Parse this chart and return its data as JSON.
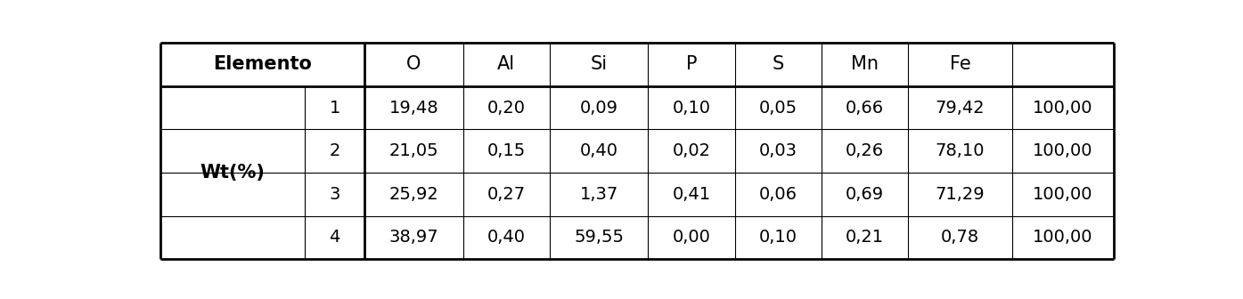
{
  "row_label": "Wt(%)",
  "header_elements": [
    "O",
    "Al",
    "Si",
    "P",
    "S",
    "Mn",
    "Fe",
    ""
  ],
  "sub_rows": [
    [
      "1",
      "19,48",
      "0,20",
      "0,09",
      "0,10",
      "0,05",
      "0,66",
      "79,42",
      "100,00"
    ],
    [
      "2",
      "21,05",
      "0,15",
      "0,40",
      "0,02",
      "0,03",
      "0,26",
      "78,10",
      "100,00"
    ],
    [
      "3",
      "25,92",
      "0,27",
      "1,37",
      "0,41",
      "0,06",
      "0,69",
      "71,29",
      "100,00"
    ],
    [
      "4",
      "38,97",
      "0,40",
      "59,55",
      "0,00",
      "0,10",
      "0,21",
      "0,78",
      "100,00"
    ]
  ],
  "background_color": "#ffffff",
  "text_color": "#000000",
  "line_color": "#000000",
  "col_widths_rel": [
    1.25,
    0.52,
    0.85,
    0.75,
    0.85,
    0.75,
    0.75,
    0.75,
    0.9,
    0.88
  ],
  "row_heights_rel": [
    1.0,
    1.0,
    1.0,
    1.0,
    1.0
  ],
  "font_size": 14,
  "header_font_size": 15,
  "lw_outer": 2.0,
  "lw_header": 2.0,
  "lw_inner": 0.8
}
